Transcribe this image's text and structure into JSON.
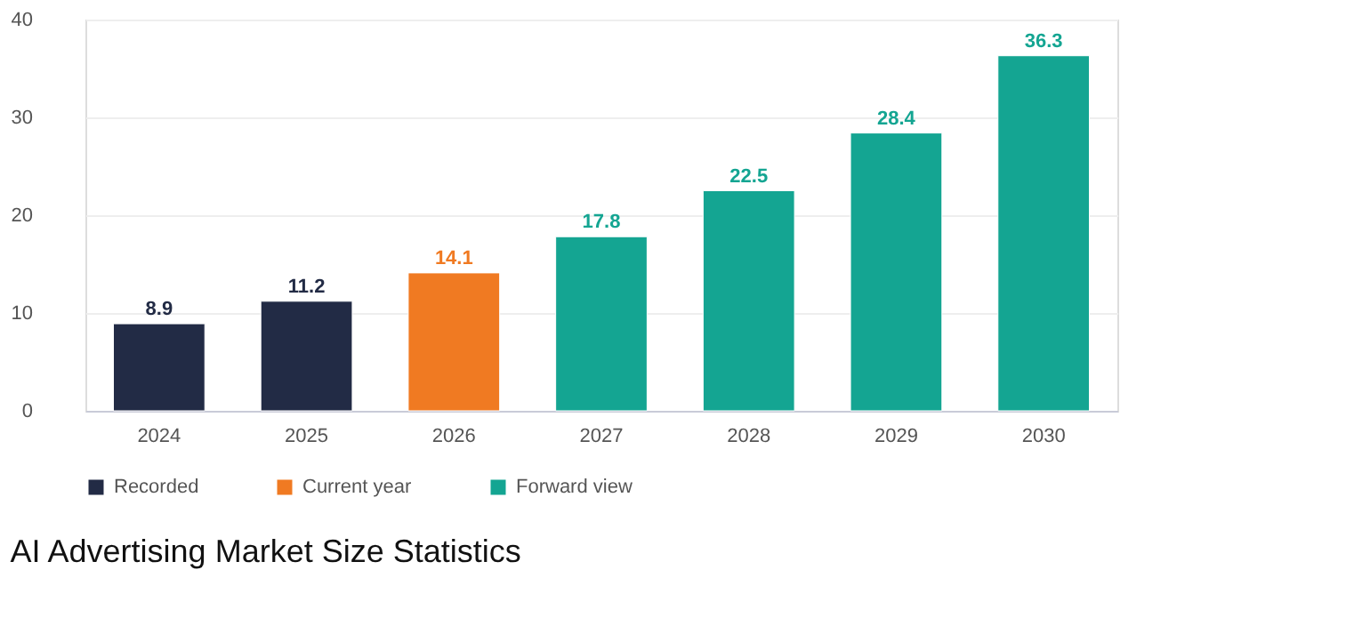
{
  "chart_data": {
    "type": "bar",
    "title": "AI Advertising Market Size Statistics",
    "categories": [
      "2024",
      "2025",
      "2026",
      "2027",
      "2028",
      "2029",
      "2030"
    ],
    "series": [
      {
        "name": "Recorded",
        "color": "#222b45",
        "values": [
          8.9,
          11.2,
          null,
          null,
          null,
          null,
          null
        ]
      },
      {
        "name": "Current year",
        "color": "#f07a22",
        "values": [
          null,
          null,
          14.1,
          null,
          null,
          null,
          null
        ]
      },
      {
        "name": "Forward view",
        "color": "#14a592",
        "values": [
          null,
          null,
          null,
          17.8,
          22.5,
          28.4,
          36.3
        ]
      }
    ],
    "ylim": [
      0,
      40
    ],
    "yticks": [
      0,
      10,
      20,
      30,
      40
    ],
    "grid": "y",
    "legend": "bottom left",
    "data_labels": true
  }
}
